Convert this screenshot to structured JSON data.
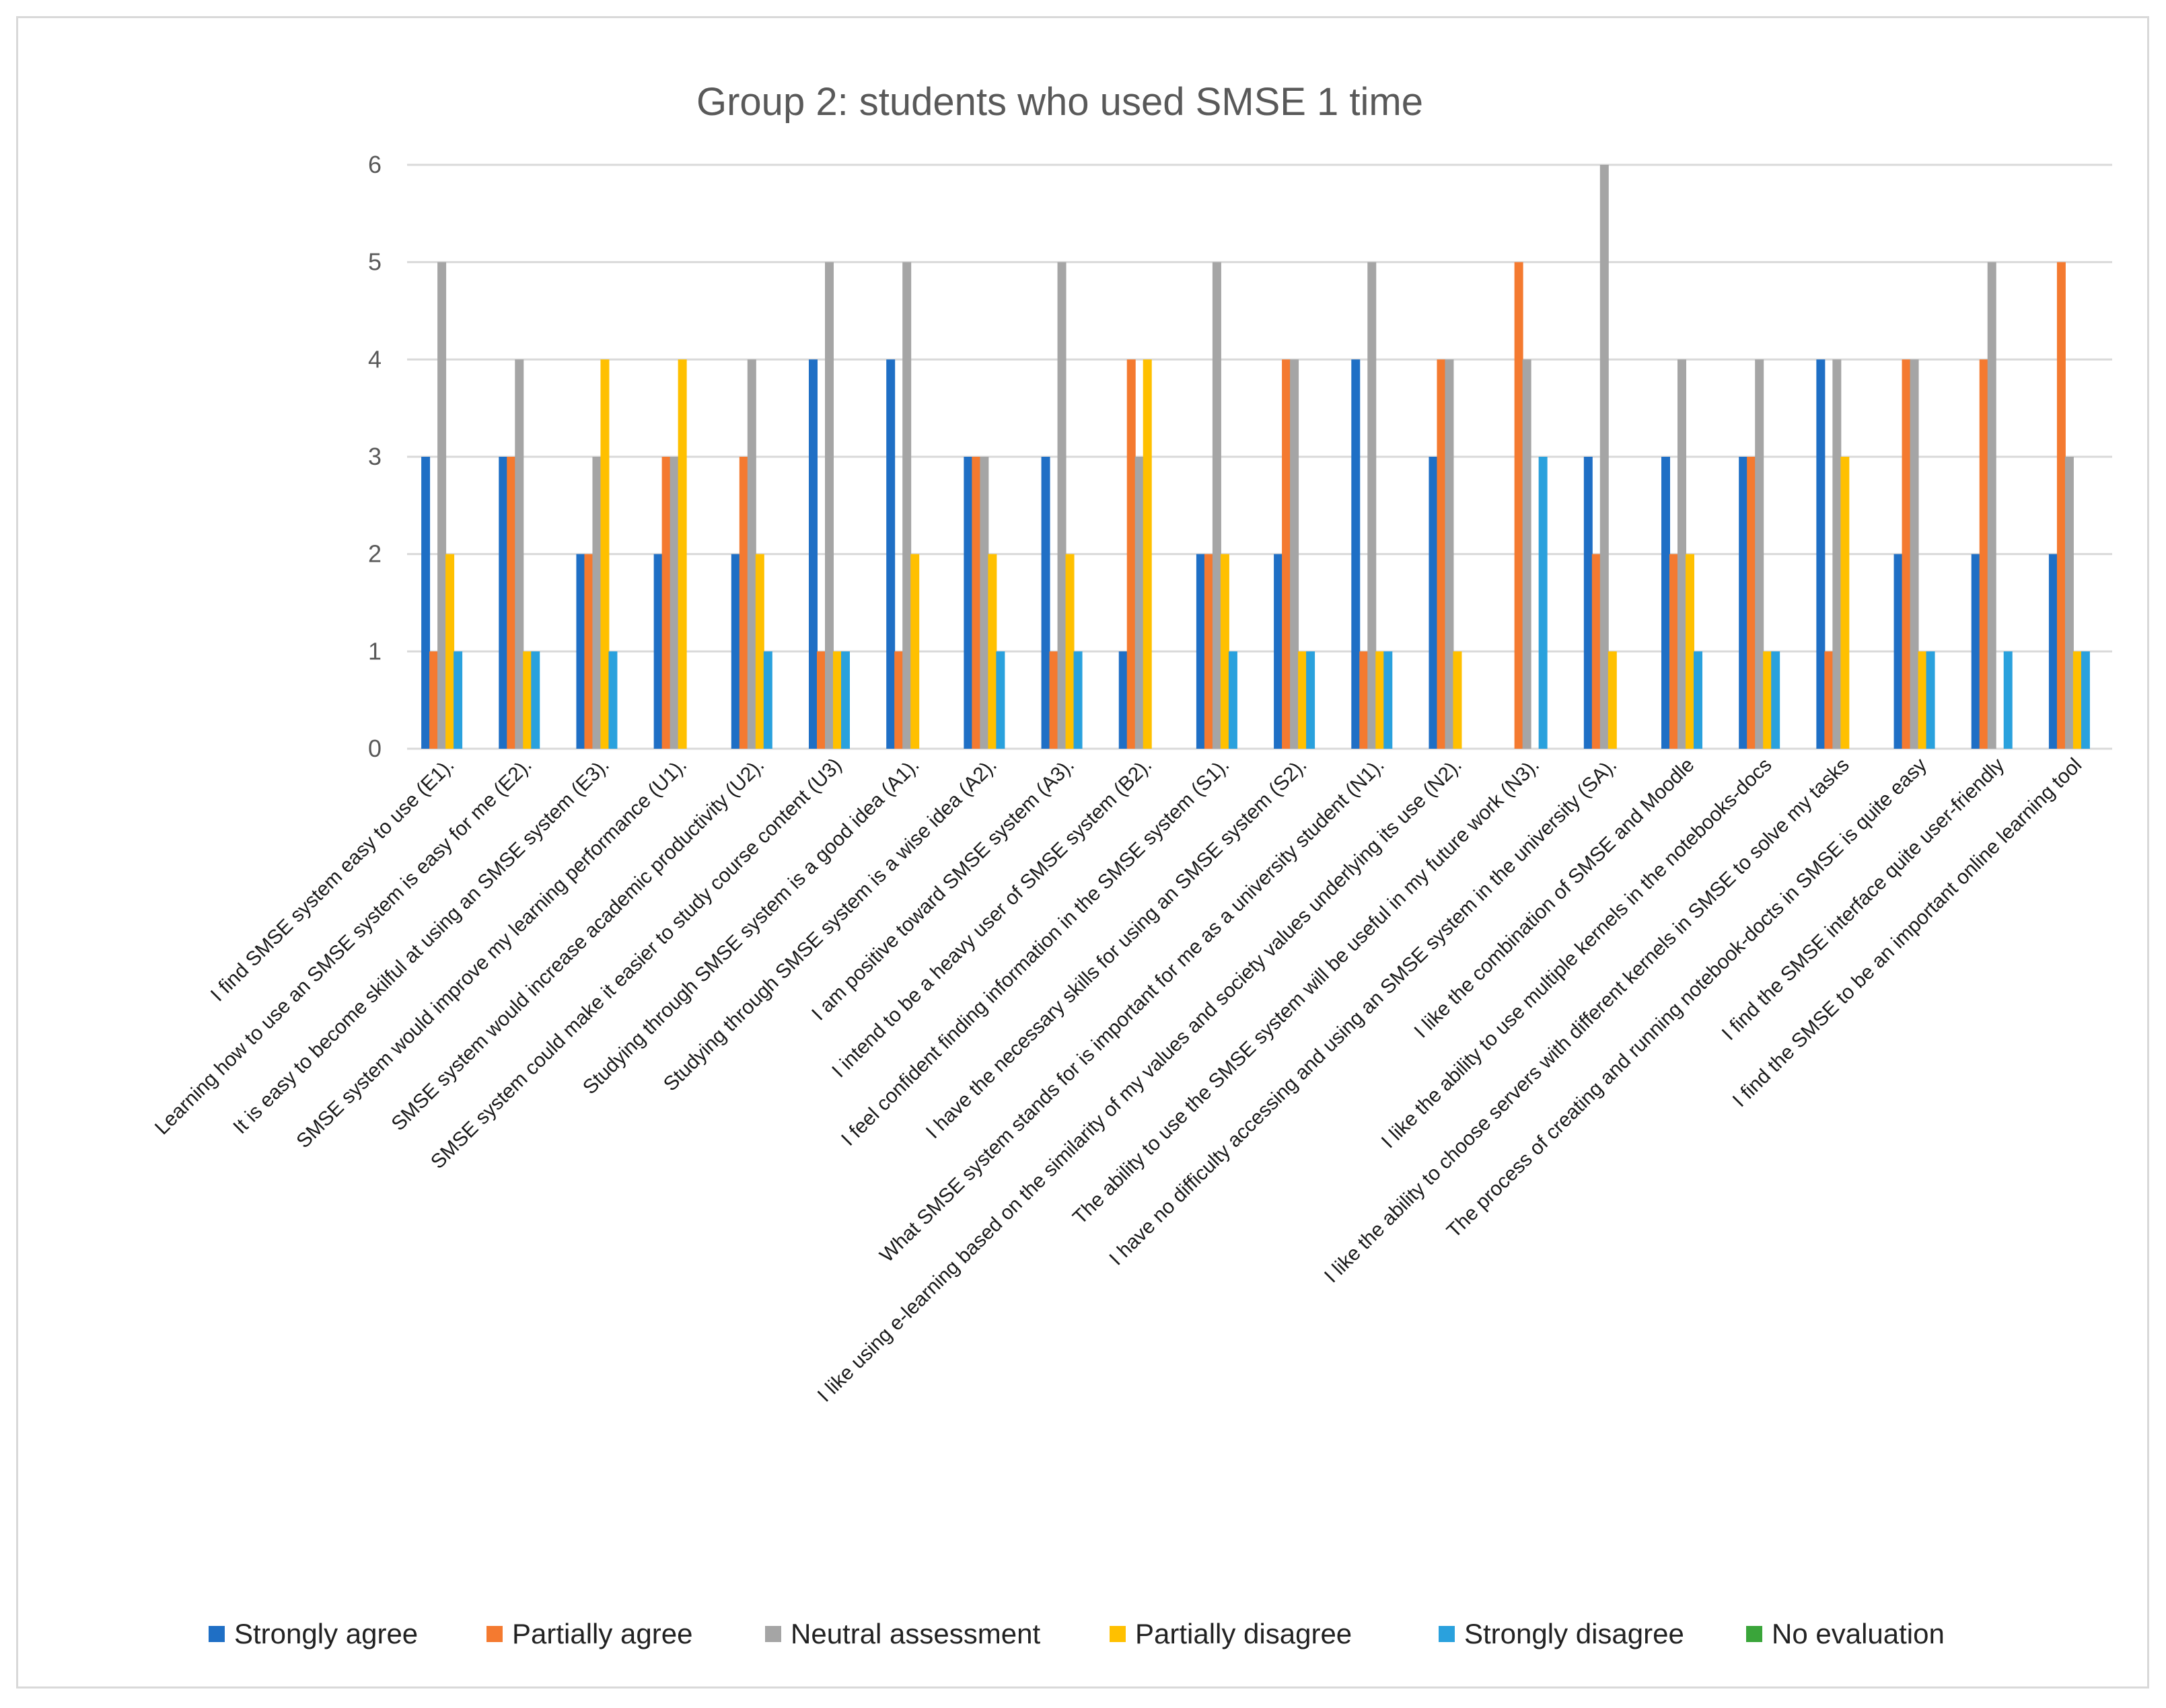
{
  "chart_data": {
    "type": "bar",
    "title": "Group 2: students who used SMSE 1 time",
    "xlabel": "",
    "ylabel": "",
    "ylim": [
      0,
      6
    ],
    "yticks": [
      0,
      1,
      2,
      3,
      4,
      5,
      6
    ],
    "grid": true,
    "legend_position": "bottom",
    "categories": [
      "I find SMSE system easy to use (E1).",
      "Learning how to use an SMSE system is easy for me (E2).",
      "It is easy to become skilful at using an SMSE system (E3).",
      "SMSE system would improve my learning performance (U1).",
      "SMSE system would increase academic productivity (U2).",
      "SMSE system could make it easier to study course content (U3)",
      "Studying through SMSE system is a good idea (A1).",
      "Studying through SMSE system is a wise idea (A2).",
      "I am positive toward SMSE system (A3).",
      "I intend to be a heavy user of SMSE system (B2).",
      "I feel confident finding information in the SMSE system (S1).",
      "I have the necessary skills for using an SMSE system (S2).",
      "What SMSE system stands for is important for me as a university student (N1).",
      "I like using e-learning based on the similarity of my values and society values underlying its use (N2).",
      "The ability to use the SMSE system will be useful in my future work (N3).",
      "I have no difficulty accessing and using an SMSE system in the university (SA).",
      "I like the combination of SMSE and Moodle",
      "I like the ability to use multiple kernels in the notebooks-docs",
      "I like the ability to choose servers with different kernels in SMSE to solve my tasks",
      "The process of creating and running notebook-docts in SMSE is quite easy",
      "I find the SMSE interface quite user-friendly",
      "I find the SMSE to be an important online learning tool"
    ],
    "series": [
      {
        "name": "Strongly agree",
        "color": "#1f6fc5",
        "values": [
          3,
          3,
          2,
          2,
          2,
          4,
          4,
          3,
          3,
          1,
          2,
          2,
          4,
          3,
          0,
          3,
          3,
          3,
          4,
          2,
          2,
          2
        ]
      },
      {
        "name": "Partially agree",
        "color": "#f47a30",
        "values": [
          1,
          3,
          2,
          3,
          3,
          1,
          1,
          3,
          1,
          4,
          2,
          4,
          1,
          4,
          5,
          2,
          2,
          3,
          1,
          4,
          4,
          5
        ]
      },
      {
        "name": "Neutral assessment",
        "color": "#a5a5a5",
        "values": [
          5,
          4,
          3,
          3,
          4,
          5,
          5,
          3,
          5,
          3,
          5,
          4,
          5,
          4,
          4,
          6,
          4,
          4,
          4,
          4,
          5,
          3
        ]
      },
      {
        "name": "Partially disagree",
        "color": "#ffc000",
        "values": [
          2,
          1,
          4,
          4,
          2,
          1,
          2,
          2,
          2,
          4,
          2,
          1,
          1,
          1,
          0,
          1,
          2,
          1,
          3,
          1,
          0,
          1
        ]
      },
      {
        "name": "Strongly disagree",
        "color": "#2aa1dd",
        "values": [
          1,
          1,
          1,
          0,
          1,
          1,
          0,
          1,
          1,
          0,
          1,
          1,
          1,
          0,
          3,
          0,
          1,
          1,
          0,
          1,
          1,
          1
        ]
      },
      {
        "name": "No evaluation",
        "color": "#3aa53a",
        "values": [
          0,
          0,
          0,
          0,
          0,
          0,
          0,
          0,
          0,
          0,
          0,
          0,
          0,
          0,
          0,
          0,
          0,
          0,
          0,
          0,
          0,
          0
        ]
      }
    ]
  }
}
